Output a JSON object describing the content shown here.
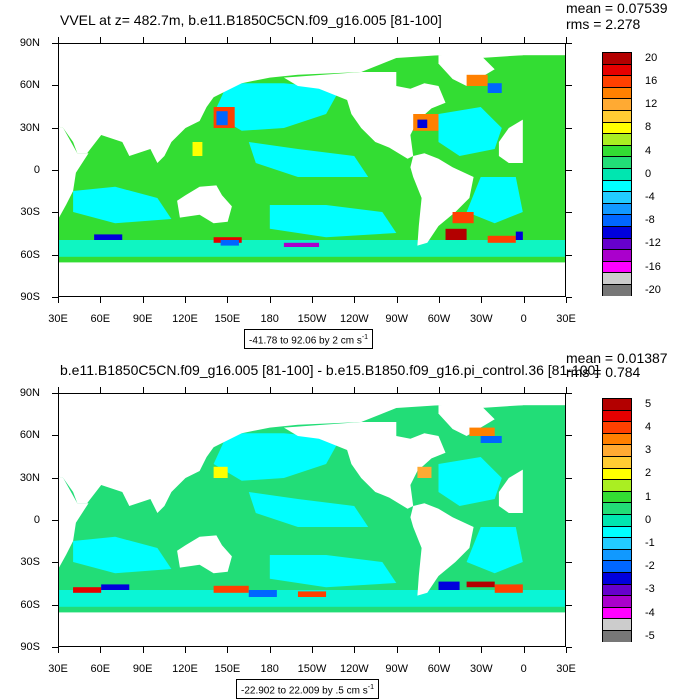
{
  "panels": [
    {
      "title": "VVEL at z= 482.7m, b.e11.B1850C5CN.f09_g16.005 [81-100]",
      "mean": "mean = 0.07539",
      "rms": "rms = 2.278",
      "range": "-41.78 to 92.06 by 2 cm s",
      "range_unit_exp": "-1",
      "colorbar_labels": [
        "20",
        "16",
        "12",
        "8",
        "4",
        "0",
        "-4",
        "-8",
        "-12",
        "-16",
        "-20"
      ]
    },
    {
      "title": "b.e11.B1850C5CN.f09_g16.005 [81-100] - b.e15.B1850.f09_g16.pi_control.36 [81-100]",
      "mean": "mean = 0.01387",
      "rms": "rms = 0.784",
      "range": "-22.902 to 22.009 by .5 cm s",
      "range_unit_exp": "-1",
      "colorbar_labels": [
        "5",
        "4",
        "3",
        "2",
        "1",
        "0",
        "-1",
        "-2",
        "-3",
        "-4",
        "-5"
      ]
    }
  ],
  "lat_labels": [
    "90N",
    "60N",
    "30N",
    "0",
    "30S",
    "60S",
    "90S"
  ],
  "lon_labels": [
    "30E",
    "60E",
    "90E",
    "120E",
    "150E",
    "180",
    "150W",
    "120W",
    "90W",
    "60W",
    "30W",
    "0",
    "30E"
  ],
  "colorbar_colors": [
    "#b30000",
    "#e60000",
    "#ff4000",
    "#ff8000",
    "#ffaa33",
    "#ffcc33",
    "#ffff00",
    "#aaee22",
    "#33dd33",
    "#22dd77",
    "#00e6b0",
    "#00ffff",
    "#22ccff",
    "#1199ff",
    "#0066ff",
    "#0000dd",
    "#6600cc",
    "#aa00cc",
    "#ff00ff",
    "#cccccc",
    "#777777"
  ],
  "map_colors": {
    "ocean_top": "#33dd33",
    "ocean_bottom": "#22dd77",
    "weak_flow": "#00ffff",
    "land": "#ffffff"
  }
}
